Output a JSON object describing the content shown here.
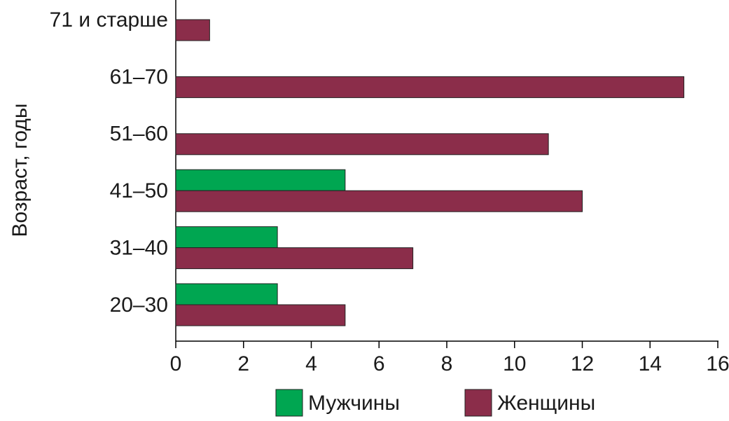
{
  "chart_data": {
    "type": "bar",
    "orientation": "horizontal",
    "ylabel": "Возраст, годы",
    "categories": [
      "20–30",
      "31–40",
      "41–50",
      "51–60",
      "61–70",
      "71 и старше"
    ],
    "series": [
      {
        "name": "Мужчины",
        "color": "#00a651",
        "values": [
          3,
          3,
          5,
          null,
          null,
          null
        ]
      },
      {
        "name": "Женщины",
        "color": "#8b2d4a",
        "values": [
          5,
          7,
          12,
          11,
          15,
          1
        ]
      }
    ],
    "xlim": [
      0,
      16
    ],
    "xticks": [
      0,
      2,
      4,
      6,
      8,
      10,
      12,
      14,
      16
    ]
  }
}
